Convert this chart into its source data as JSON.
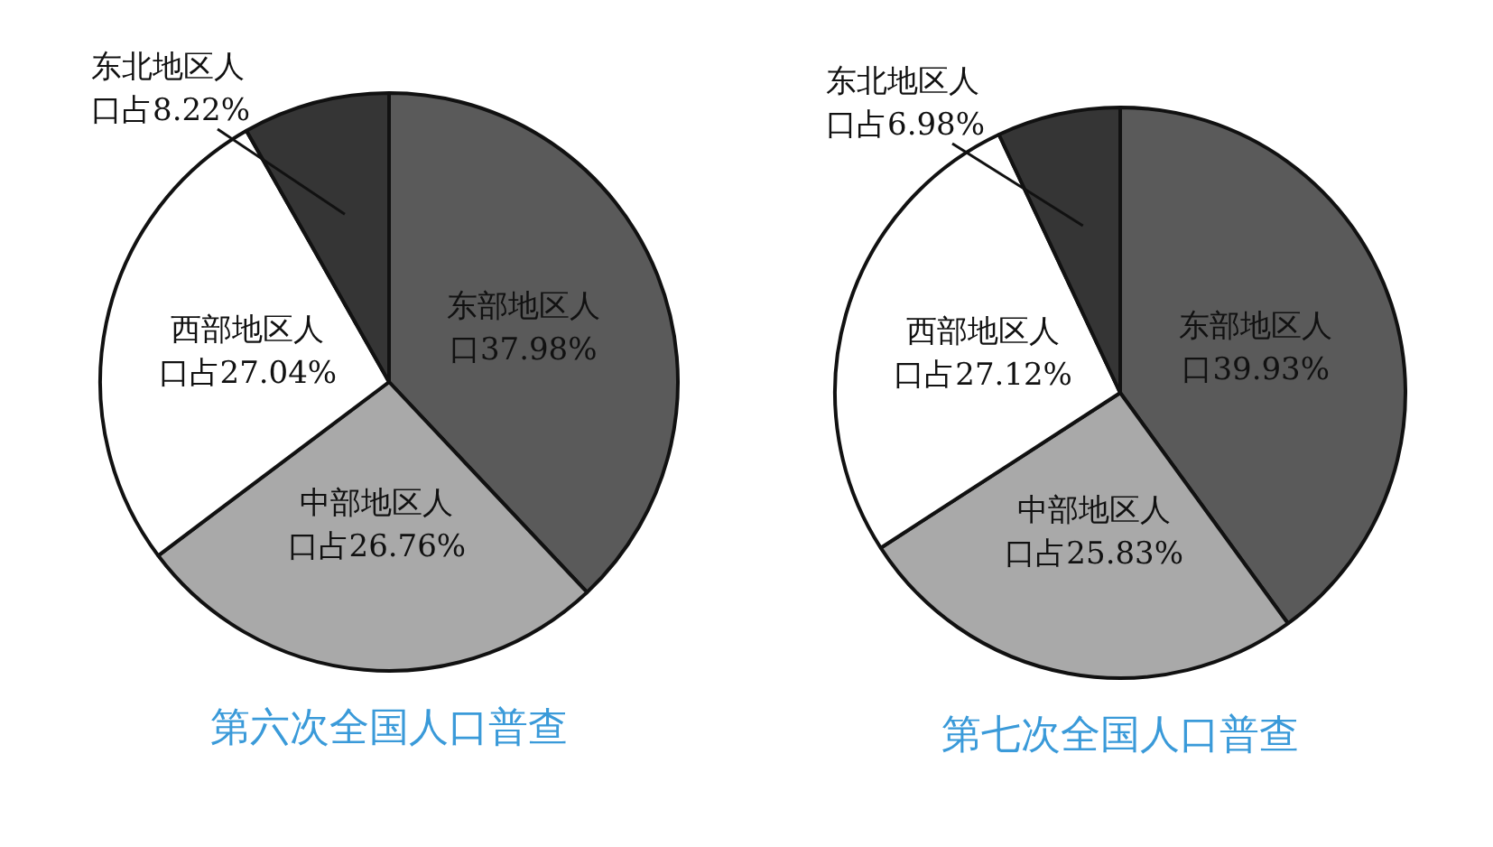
{
  "chart_data": [
    {
      "type": "pie",
      "title": "第六次全国人口普查",
      "categories": [
        "东部地区人口",
        "中部地区人口占",
        "西部地区人口占",
        "东北地区人口占"
      ],
      "values": [
        37.98,
        26.76,
        27.04,
        8.22
      ],
      "value_labels": [
        "37.98%",
        "26.76%",
        "27.04%",
        "8.22%"
      ],
      "colors": [
        "#5a5a5a",
        "#a9a9a9",
        "#ffffff",
        "#353535"
      ]
    },
    {
      "type": "pie",
      "title": "第七次全国人口普查",
      "categories": [
        "东部地区人口",
        "中部地区人口占",
        "西部地区人口占",
        "东北地区人口占"
      ],
      "values": [
        39.93,
        25.83,
        27.12,
        6.98
      ],
      "value_labels": [
        "39.93%",
        "25.83%",
        "27.12%",
        "6.98%"
      ],
      "colors": [
        "#5a5a5a",
        "#a9a9a9",
        "#ffffff",
        "#353535"
      ]
    }
  ]
}
